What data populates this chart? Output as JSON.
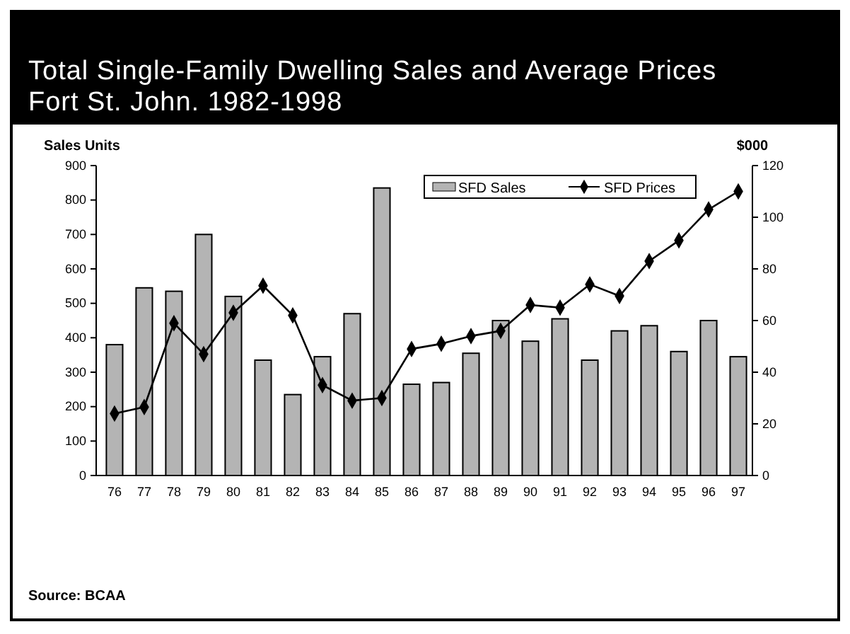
{
  "chart_data": {
    "type": "bar",
    "title": "Total Single-Family Dwelling Sales and Average Prices",
    "subtitle": "Fort St. John. 1982-1998",
    "ylabel": "Sales Units",
    "y2label": "$000",
    "categories": [
      "76",
      "77",
      "78",
      "79",
      "80",
      "81",
      "82",
      "83",
      "84",
      "85",
      "86",
      "87",
      "88",
      "89",
      "90",
      "91",
      "92",
      "93",
      "94",
      "95",
      "96",
      "97"
    ],
    "series": [
      {
        "name": "SFD Sales",
        "color": "#b4b4b4",
        "values": [
          380,
          545,
          535,
          700,
          520,
          335,
          235,
          345,
          470,
          835,
          265,
          270,
          355,
          450,
          390,
          455,
          335,
          420,
          435,
          360,
          450,
          345
        ]
      },
      {
        "name": "SFD Prices",
        "type": "line",
        "axis": "y2",
        "color": "#000000",
        "marker": "diamond",
        "values": [
          24,
          26.5,
          59,
          47,
          63,
          73.5,
          62,
          35,
          29,
          30,
          49,
          51,
          54,
          56,
          66,
          65,
          74,
          69.5,
          83,
          91,
          103,
          110
        ]
      }
    ],
    "ylim": [
      0,
      900
    ],
    "yticks": [
      0,
      100,
      200,
      300,
      400,
      500,
      600,
      700,
      800,
      900
    ],
    "y2lim": [
      0,
      120
    ],
    "y2ticks": [
      0,
      20,
      40,
      60,
      80,
      100,
      120
    ],
    "legend": "top right",
    "annotations": [
      "Source: BCAA"
    ]
  }
}
